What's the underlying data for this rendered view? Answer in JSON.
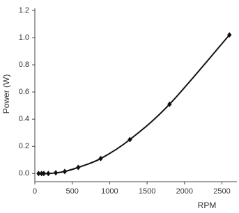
{
  "chart_data": {
    "type": "line",
    "x_label": "RPM",
    "y_label": "Power (W)",
    "x": [
      50,
      90,
      120,
      180,
      280,
      400,
      580,
      880,
      1270,
      1800,
      2600
    ],
    "series": [
      {
        "color": "#111111",
        "values": [
          0,
          0,
          0,
          0,
          0.005,
          0.015,
          0.045,
          0.11,
          0.25,
          0.51,
          1.02
        ]
      }
    ],
    "xlim": [
      0,
      2700
    ],
    "xticks": [
      0,
      500,
      1000,
      1500,
      2000,
      2500
    ],
    "ylim": [
      -0.06,
      1.2
    ],
    "yticks": [
      {
        "value": 0,
        "label": "0.0"
      },
      0.2,
      0.4,
      0.6,
      0.8,
      {
        "value": 1,
        "label": "1.0"
      },
      {
        "value": 1.2,
        "label": "1.2"
      }
    ],
    "grid": false,
    "smooth": true,
    "marker": "diamond"
  }
}
